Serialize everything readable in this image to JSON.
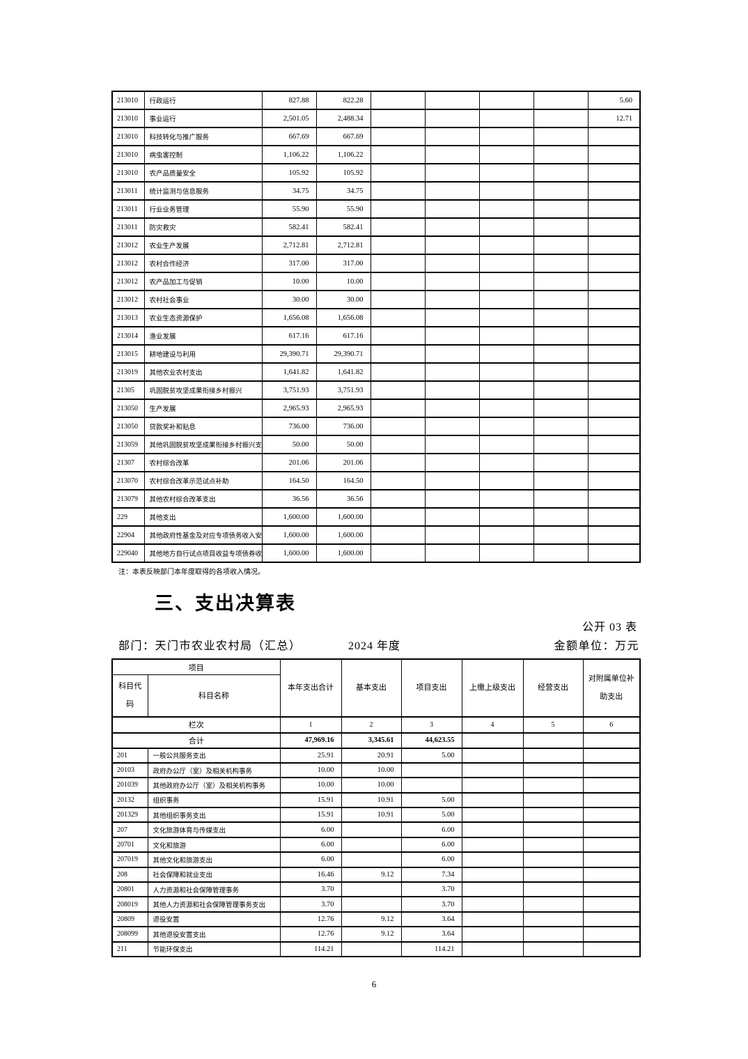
{
  "page": {
    "number": "6"
  },
  "income_table": {
    "note": "注：本表反映部门本年度取得的各项收入情况。",
    "rows": [
      [
        "213010",
        "行政运行",
        "827.88",
        "822.28",
        "",
        "",
        "",
        "",
        "5.60"
      ],
      [
        "213010",
        "事业运行",
        "2,501.05",
        "2,488.34",
        "",
        "",
        "",
        "",
        "12.71"
      ],
      [
        "213010",
        "科技转化与推广服务",
        "667.69",
        "667.69",
        "",
        "",
        "",
        "",
        ""
      ],
      [
        "213010",
        "病虫害控制",
        "1,106.22",
        "1,106.22",
        "",
        "",
        "",
        "",
        ""
      ],
      [
        "213010",
        "农产品质量安全",
        "105.92",
        "105.92",
        "",
        "",
        "",
        "",
        ""
      ],
      [
        "213011",
        "统计监测与信息服务",
        "34.75",
        "34.75",
        "",
        "",
        "",
        "",
        ""
      ],
      [
        "213011",
        "行业业务管理",
        "55.90",
        "55.90",
        "",
        "",
        "",
        "",
        ""
      ],
      [
        "213011",
        "防灾救灾",
        "582.41",
        "582.41",
        "",
        "",
        "",
        "",
        ""
      ],
      [
        "213012",
        "农业生产发展",
        "2,712.81",
        "2,712.81",
        "",
        "",
        "",
        "",
        ""
      ],
      [
        "213012",
        "农村合作经济",
        "317.00",
        "317.00",
        "",
        "",
        "",
        "",
        ""
      ],
      [
        "213012",
        "农产品加工与促销",
        "10.00",
        "10.00",
        "",
        "",
        "",
        "",
        ""
      ],
      [
        "213012",
        "农村社会事业",
        "30.00",
        "30.00",
        "",
        "",
        "",
        "",
        ""
      ],
      [
        "213013",
        "农业生态资源保护",
        "1,656.08",
        "1,656.08",
        "",
        "",
        "",
        "",
        ""
      ],
      [
        "213014",
        "渔业发展",
        "617.16",
        "617.16",
        "",
        "",
        "",
        "",
        ""
      ],
      [
        "213015",
        "耕地建设与利用",
        "29,390.71",
        "29,390.71",
        "",
        "",
        "",
        "",
        ""
      ],
      [
        "213019",
        "其他农业农村支出",
        "1,641.82",
        "1,641.82",
        "",
        "",
        "",
        "",
        ""
      ],
      [
        "21305",
        "巩固脱贫攻坚成果衔接乡村振兴",
        "3,751.93",
        "3,751.93",
        "",
        "",
        "",
        "",
        ""
      ],
      [
        "213050",
        "生产发展",
        "2,965.93",
        "2,965.93",
        "",
        "",
        "",
        "",
        ""
      ],
      [
        "213050",
        "贷款奖补和贴息",
        "736.00",
        "736.00",
        "",
        "",
        "",
        "",
        ""
      ],
      [
        "213059",
        "其他巩固脱贫攻坚成果衔接乡村振兴支",
        "50.00",
        "50.00",
        "",
        "",
        "",
        "",
        ""
      ],
      [
        "21307",
        "农村综合改革",
        "201.06",
        "201.06",
        "",
        "",
        "",
        "",
        ""
      ],
      [
        "213070",
        "农村综合改革示范试点补助",
        "164.50",
        "164.50",
        "",
        "",
        "",
        "",
        ""
      ],
      [
        "213079",
        "其他农村综合改革支出",
        "36.56",
        "36.56",
        "",
        "",
        "",
        "",
        ""
      ],
      [
        "229",
        "其他支出",
        "1,600.00",
        "1,600.00",
        "",
        "",
        "",
        "",
        ""
      ],
      [
        "22904",
        "其他政府性基金及对应专项债务收入安",
        "1,600.00",
        "1,600.00",
        "",
        "",
        "",
        "",
        ""
      ],
      [
        "229040",
        "其他地方自行试点项目收益专项债券收",
        "1,600.00",
        "1,600.00",
        "",
        "",
        "",
        "",
        ""
      ]
    ]
  },
  "section": {
    "title": "三、支出决算表",
    "table_label": "公开 03 表",
    "department": "部门：天门市农业农村局（汇总）",
    "year": "2024 年度",
    "unit": "金额单位：万元"
  },
  "expense_table": {
    "header": {
      "project": "项目",
      "code": "科目代码",
      "name": "科目名称",
      "total": "本年支出合计",
      "basic": "基本支出",
      "project_exp": "项目支出",
      "upper": "上缴上级支出",
      "operating": "经营支出",
      "subsidiary": "对附属单位补助支出"
    },
    "columns_row": {
      "label": "栏次",
      "cols": [
        "1",
        "2",
        "3",
        "4",
        "5",
        "6"
      ]
    },
    "total_row": {
      "label": "合计",
      "values": [
        "47,969.16",
        "3,345.61",
        "44,623.55",
        "",
        "",
        ""
      ]
    },
    "rows": [
      [
        "201",
        "一般公共服务支出",
        "25.91",
        "20.91",
        "5.00",
        "",
        "",
        ""
      ],
      [
        "20103",
        "政府办公厅（室）及相关机构事务",
        "10.00",
        "10.00",
        "",
        "",
        "",
        ""
      ],
      [
        "201039",
        "其他政府办公厅（室）及相关机构事务",
        "10.00",
        "10.00",
        "",
        "",
        "",
        ""
      ],
      [
        "20132",
        "组织事务",
        "15.91",
        "10.91",
        "5.00",
        "",
        "",
        ""
      ],
      [
        "201329",
        "其他组织事务支出",
        "15.91",
        "10.91",
        "5.00",
        "",
        "",
        ""
      ],
      [
        "207",
        "文化旅游体育与传媒支出",
        "6.00",
        "",
        "6.00",
        "",
        "",
        ""
      ],
      [
        "20701",
        "文化和旅游",
        "6.00",
        "",
        "6.00",
        "",
        "",
        ""
      ],
      [
        "207019",
        "其他文化和旅游支出",
        "6.00",
        "",
        "6.00",
        "",
        "",
        ""
      ],
      [
        "208",
        "社会保障和就业支出",
        "16.46",
        "9.12",
        "7.34",
        "",
        "",
        ""
      ],
      [
        "20801",
        "人力资源和社会保障管理事务",
        "3.70",
        "",
        "3.70",
        "",
        "",
        ""
      ],
      [
        "208019",
        "其他人力资源和社会保障管理事务支出",
        "3.70",
        "",
        "3.70",
        "",
        "",
        ""
      ],
      [
        "20809",
        "退役安置",
        "12.76",
        "9.12",
        "3.64",
        "",
        "",
        ""
      ],
      [
        "208099",
        "其他退役安置支出",
        "12.76",
        "9.12",
        "3.64",
        "",
        "",
        ""
      ],
      [
        "211",
        "节能环保支出",
        "114.21",
        "",
        "114.21",
        "",
        "",
        ""
      ]
    ]
  }
}
